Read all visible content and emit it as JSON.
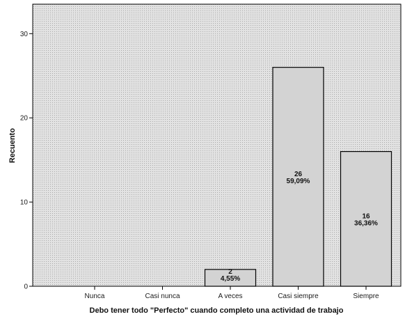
{
  "chart_data": {
    "type": "bar",
    "xlabel": "Debo tener todo \"Perfecto\" cuando completo una actividad de trabajo",
    "ylabel": "Recuento",
    "categories": [
      "Nunca",
      "Casi nunca",
      "A veces",
      "Casi siempre",
      "Siempre"
    ],
    "values": [
      0,
      0,
      2,
      26,
      16
    ],
    "data_labels": [
      {
        "count": "",
        "percent": ""
      },
      {
        "count": "",
        "percent": ""
      },
      {
        "count": "2",
        "percent": "4,55%"
      },
      {
        "count": "26",
        "percent": "59,09%"
      },
      {
        "count": "16",
        "percent": "36,36%"
      }
    ],
    "ylim": [
      0,
      33.5
    ],
    "yticks": [
      "0",
      "10",
      "20",
      "30"
    ],
    "ytick_values": [
      0,
      10,
      20,
      30
    ],
    "grid": false,
    "colors": {
      "bar_fill": "#d3d3d3",
      "bar_stroke": "#000000",
      "plot_background": "#dcdcdc",
      "plot_dots": "#b0b0b0"
    }
  }
}
